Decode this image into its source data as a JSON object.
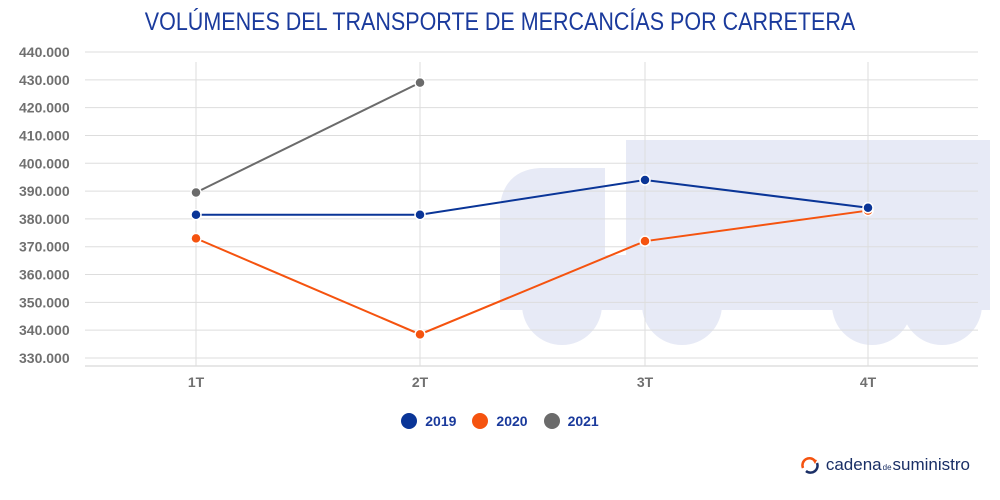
{
  "chart_data": {
    "type": "line",
    "title": "VOLÚMENES DEL TRANSPORTE DE MERCANCÍAS POR CARRETERA",
    "categories": [
      "1T",
      "2T",
      "3T",
      "4T"
    ],
    "y_ticks": [
      "440.000",
      "430.000",
      "420.000",
      "410.000",
      "400.000",
      "390.000",
      "380.000",
      "370.000",
      "360.000",
      "350.000",
      "340.000",
      "330.000"
    ],
    "ylim": [
      330000,
      440000
    ],
    "series": [
      {
        "name": "2019",
        "color": "#0a3597",
        "values": [
          381500,
          381500,
          394000,
          384000
        ]
      },
      {
        "name": "2020",
        "color": "#f5530f",
        "values": [
          373000,
          338500,
          372000,
          383000
        ]
      },
      {
        "name": "2021",
        "color": "#6b6b6b",
        "values": [
          389500,
          429000,
          null,
          null
        ]
      }
    ],
    "xlabel": "",
    "ylabel": "",
    "legend_position": "bottom-center"
  },
  "brand": {
    "part1": "cadena",
    "part2": "de",
    "part3": "suministro",
    "accent": "#f5530f"
  }
}
